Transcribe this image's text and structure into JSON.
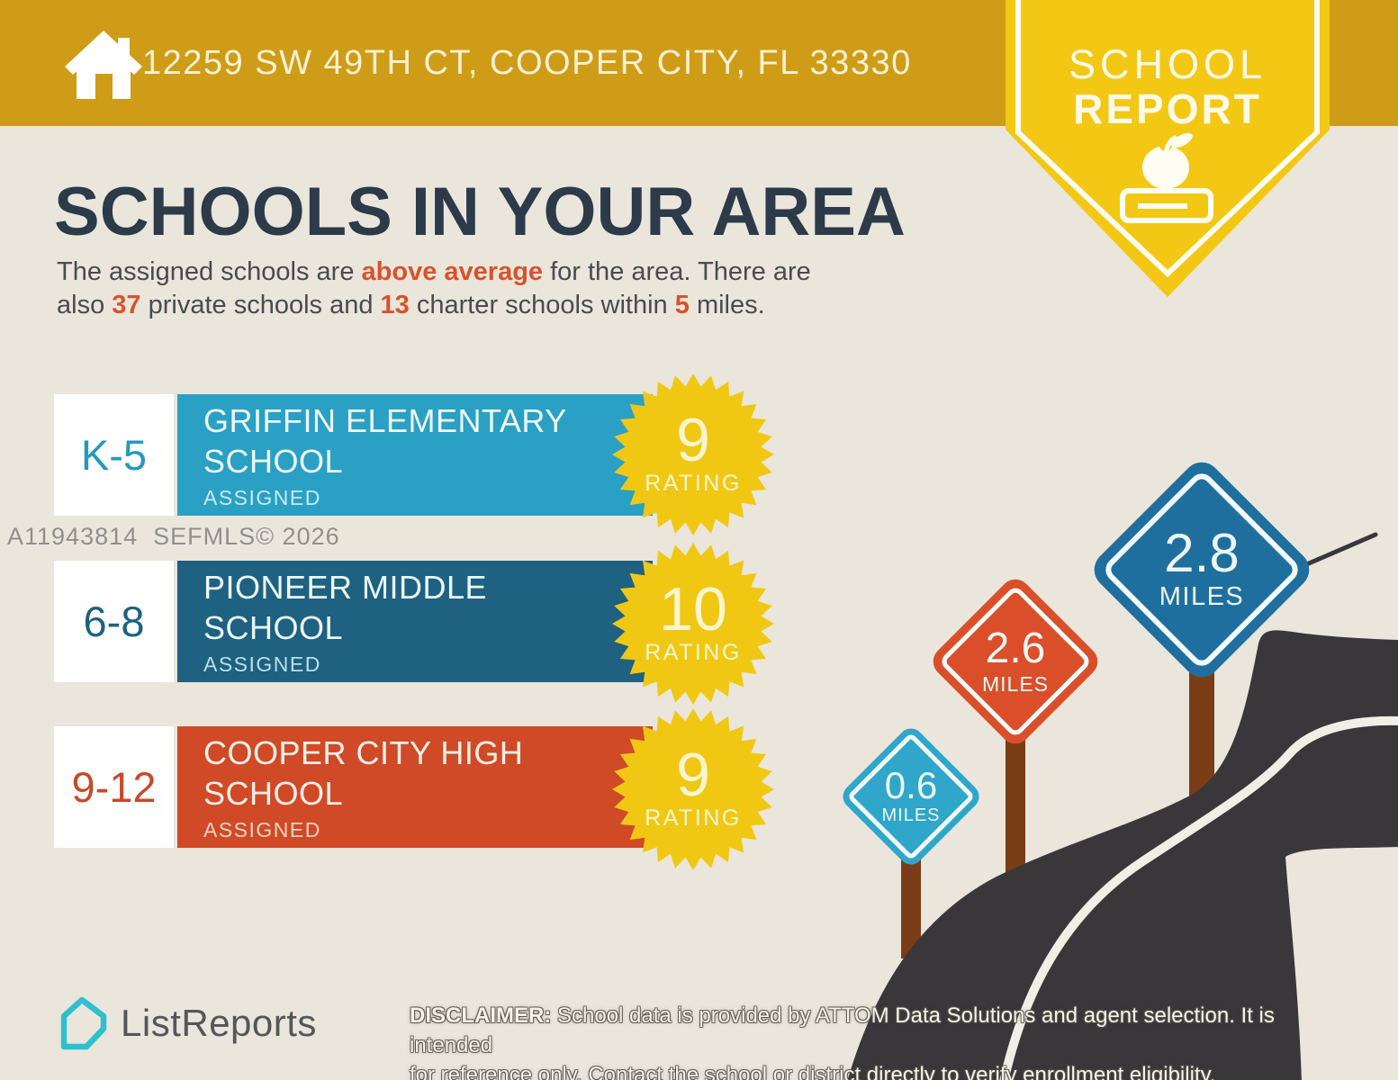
{
  "header": {
    "address": "12259 SW 49TH CT, COOPER CITY, FL 33330",
    "badge": {
      "line1": "SCHOOL",
      "line2": "REPORT"
    }
  },
  "main": {
    "title": "SCHOOLS IN YOUR AREA",
    "subtitle": {
      "line1": [
        "The assigned schools are ",
        "above average",
        " for the area. There are"
      ],
      "line2": [
        "also ",
        "37",
        " private schools and ",
        "13",
        " charter schools within ",
        "5",
        " miles."
      ]
    }
  },
  "schools": [
    {
      "grades": "K-5",
      "name_line1": "GRIFFIN ELEMENTARY",
      "name_line2": "SCHOOL",
      "status": "ASSIGNED",
      "rating": "9",
      "rating_label": "RATING",
      "bar_color": "#2AA0C5",
      "grade_color": "#2599BF",
      "name_color": "#EFF9FB",
      "assigned_color": "#C9EAF3"
    },
    {
      "grades": "6-8",
      "name_line1": "PIONEER MIDDLE",
      "name_line2": "SCHOOL",
      "status": "ASSIGNED",
      "rating": "10",
      "rating_label": "RATING",
      "bar_color": "#1E6181",
      "grade_color": "#1E6181",
      "name_color": "#EDF8FB",
      "assigned_color": "#BCDFEC"
    },
    {
      "grades": "9-12",
      "name_line1": "COOPER CITY HIGH",
      "name_line2": "SCHOOL",
      "status": "ASSIGNED",
      "rating": "9",
      "rating_label": "RATING",
      "bar_color": "#D04A27",
      "grade_color": "#C8492A",
      "name_color": "#FAEFE7",
      "assigned_color": "#F5D3C3"
    }
  ],
  "signs": [
    {
      "distance": "0.6",
      "unit": "MILES",
      "color": "#2FA6CA"
    },
    {
      "distance": "2.6",
      "unit": "MILES",
      "color": "#DA4F2A"
    },
    {
      "distance": "2.8",
      "unit": "MILES",
      "color": "#1F6F9E"
    }
  ],
  "watermark": "A11943814  SEFMLS© 2026",
  "footer": {
    "brand": "ListReports",
    "disclaimer": {
      "label": "DISCLAIMER:",
      "line1": " School data is provided by ATTOM Data Solutions and agent selection. It is intended",
      "line2": "for reference only. Contact the school or district directly to verify enrollment eligibility."
    }
  },
  "icons": {
    "header_home": "house",
    "badge_emblem": "apple-on-book",
    "brand_mark": "listreports-house-fold"
  },
  "colors": {
    "header_gold": "#CF9C17",
    "badge_yellow": "#F3C814",
    "background_cream": "#EAE6DC",
    "title_navy": "#2C3A49",
    "body_text": "#4A4B4F",
    "accent_orange": "#D8522C",
    "star_yellow": "#F0C813",
    "road_charcoal": "#39373A",
    "road_line": "#F1EEE5",
    "post_brown": "#7A3D15",
    "brand_teal": "#2EC0CE",
    "watermark_gray": "#8F8E89"
  }
}
